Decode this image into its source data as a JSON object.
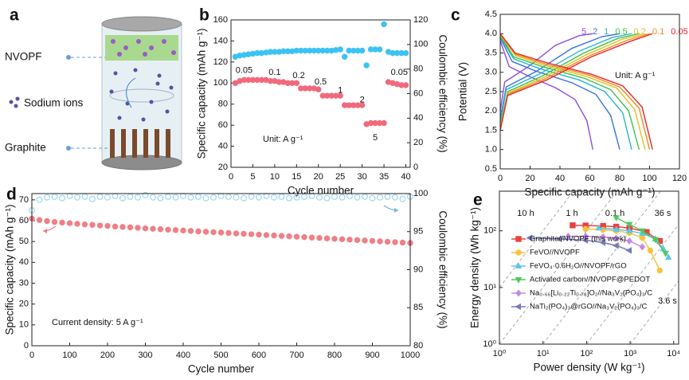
{
  "diagram": {
    "letter": "a",
    "labels": [
      "NVOPF",
      "Sodium ions",
      "Graphite"
    ]
  },
  "chart_data": [
    {
      "letter": "b",
      "type": "scatter",
      "xlabel": "Cycle number",
      "ylabel": "Specific capacity (mAh g⁻¹)",
      "y2label": "Coulombic efficiency (%)",
      "x": [
        1,
        2,
        3,
        4,
        5,
        6,
        7,
        8,
        9,
        10,
        11,
        12,
        13,
        14,
        15,
        16,
        17,
        18,
        19,
        20,
        21,
        22,
        23,
        24,
        25,
        26,
        27,
        28,
        29,
        30,
        31,
        32,
        33,
        34,
        35,
        36,
        37,
        38,
        39,
        40
      ],
      "xlim": [
        0,
        41
      ],
      "xticks": [
        0,
        5,
        10,
        15,
        20,
        25,
        30,
        35,
        40
      ],
      "ylim": [
        20,
        160
      ],
      "yticks": [
        20,
        40,
        60,
        80,
        100,
        120,
        140,
        160
      ],
      "y2lim": [
        0,
        120
      ],
      "y2ticks": [
        0,
        20,
        40,
        60,
        80,
        100,
        120
      ],
      "series": [
        {
          "color": "#f06a7c",
          "marker": "circle",
          "values": [
            100,
            102,
            103,
            103,
            103,
            103,
            103,
            103,
            102,
            102,
            101,
            101,
            100,
            100,
            100,
            95,
            95,
            95,
            95,
            94,
            88,
            88,
            88,
            88,
            88,
            79,
            79,
            79,
            79,
            79,
            61,
            62,
            62,
            62,
            62,
            101,
            100,
            99,
            98,
            98
          ]
        },
        {
          "color": "#3cc3f2",
          "marker": "circle",
          "axis": "y2",
          "values": [
            90,
            91,
            91.5,
            92,
            92.5,
            93,
            93,
            93.5,
            94,
            94,
            94,
            94.5,
            94.5,
            94.5,
            95,
            95,
            95,
            95,
            95,
            95,
            95,
            95,
            95,
            95.5,
            96,
            90,
            95,
            95,
            95,
            95,
            83,
            96,
            96,
            96,
            116.5,
            94,
            93,
            93,
            93,
            93
          ]
        }
      ],
      "rate_labels": [
        "0.05",
        "0.1",
        "0.2",
        "0.5",
        "1",
        "2",
        "5",
        "0.05"
      ],
      "unit_note": "Unit: A g⁻¹"
    },
    {
      "letter": "c",
      "type": "line",
      "xlabel": "Specific capacity (mAh g⁻¹)",
      "ylabel": "Potential (V)",
      "xlim": [
        0,
        120
      ],
      "xticks": [
        0,
        20,
        40,
        60,
        80,
        100,
        120
      ],
      "ylim": [
        0.5,
        4.5
      ],
      "yticks": [
        0.5,
        {
          "value": 1,
          "label": "1.0"
        },
        1.5,
        {
          "value": 2,
          "label": "2.0"
        },
        2.5,
        {
          "value": 3,
          "label": "3.0"
        },
        3.5,
        {
          "value": 4,
          "label": "4.0"
        },
        4.5
      ],
      "series": [
        {
          "name": "5",
          "color": "#8a4fd8",
          "discharge": {
            "x": [
              0,
              6,
              19,
              37,
              50,
              58,
              62
            ],
            "values": [
              3.82,
              3.15,
              2.9,
              2.6,
              2.3,
              1.75,
              1.0
            ]
          },
          "charge": {
            "x": [
              0,
              3,
              19,
              37,
              53,
              62
            ],
            "values": [
              2.0,
              2.75,
              3.15,
              3.7,
              3.95,
              4.0
            ]
          }
        },
        {
          "name": "2",
          "color": "#3b6fe0",
          "discharge": {
            "x": [
              0,
              8,
              24,
              48,
              64,
              74,
              80
            ],
            "values": [
              3.89,
              3.28,
              3.03,
              2.73,
              2.43,
              1.88,
              1.0
            ]
          },
          "charge": {
            "x": [
              0,
              4,
              24,
              48,
              68,
              80
            ],
            "values": [
              1.8,
              2.62,
              3.02,
              3.62,
              3.92,
              4.0
            ]
          }
        },
        {
          "name": "1",
          "color": "#29b6c9",
          "discharge": {
            "x": [
              0,
              9,
              26,
              53,
              70,
              82,
              88
            ],
            "values": [
              3.92,
              3.35,
              3.1,
              2.8,
              2.5,
              1.95,
              1.0
            ]
          },
          "charge": {
            "x": [
              0,
              4,
              26,
              53,
              75,
              88
            ],
            "values": [
              1.7,
              2.55,
              2.95,
              3.55,
              3.9,
              4.0
            ]
          }
        },
        {
          "name": "0.5",
          "color": "#3cc14a",
          "discharge": {
            "x": [
              0,
              9,
              28,
              56,
              74,
              86,
              93
            ],
            "values": [
              3.95,
              3.4,
              3.15,
              2.85,
              2.55,
              2.0,
              1.0
            ]
          },
          "charge": {
            "x": [
              0,
              5,
              28,
              56,
              79,
              93
            ],
            "values": [
              1.6,
              2.5,
              2.9,
              3.5,
              3.88,
              4.0
            ]
          }
        },
        {
          "name": "0.2",
          "color": "#e0c020",
          "discharge": {
            "x": [
              0,
              10,
              29,
              58,
              78,
              90,
              97
            ],
            "values": [
              3.97,
              3.44,
              3.19,
              2.89,
              2.59,
              2.04,
              1.0
            ]
          },
          "charge": {
            "x": [
              0,
              5,
              29,
              58,
              82,
              97
            ],
            "values": [
              1.55,
              2.46,
              2.86,
              3.46,
              3.86,
              4.0
            ]
          }
        },
        {
          "name": "0.1",
          "color": "#f08a1c",
          "discharge": {
            "x": [
              0,
              10,
              30,
              60,
              80,
              93,
              100
            ],
            "values": [
              3.98,
              3.47,
              3.22,
              2.92,
              2.62,
              2.07,
              1.0
            ]
          },
          "charge": {
            "x": [
              0,
              5,
              30,
              60,
              85,
              100
            ],
            "values": [
              1.5,
              2.43,
              2.83,
              3.43,
              3.83,
              4.0
            ]
          }
        },
        {
          "name": "0.05",
          "color": "#e8262a",
          "discharge": {
            "x": [
              0,
              10,
              31,
              61,
              82,
              95,
              102
            ],
            "values": [
              4.0,
              3.5,
              3.25,
              2.95,
              2.65,
              2.1,
              1.0
            ]
          },
          "charge": {
            "x": [
              0,
              5,
              31,
              61,
              87,
              102
            ],
            "values": [
              1.5,
              2.4,
              2.8,
              3.4,
              3.8,
              4.0
            ]
          }
        }
      ],
      "unit_note": "Unit: A g⁻¹"
    },
    {
      "letter": "d",
      "type": "scatter",
      "xlabel": "Cycle number",
      "ylabel": "Specific capacity (mAh g⁻¹)",
      "y2label": "Coulombic efficiency (%)",
      "x": [
        0,
        20,
        40,
        60,
        80,
        100,
        120,
        140,
        160,
        180,
        200,
        220,
        240,
        260,
        280,
        300,
        320,
        340,
        360,
        380,
        400,
        420,
        440,
        460,
        480,
        500,
        520,
        540,
        560,
        580,
        600,
        620,
        640,
        660,
        680,
        700,
        720,
        740,
        760,
        780,
        800,
        820,
        840,
        860,
        880,
        900,
        920,
        940,
        960,
        980,
        1000
      ],
      "xlim": [
        0,
        1000
      ],
      "xticks": [
        0,
        100,
        200,
        300,
        400,
        500,
        600,
        700,
        800,
        900,
        1000
      ],
      "ylim": [
        0,
        73
      ],
      "yticks": [
        0,
        10,
        20,
        30,
        40,
        50,
        60,
        70
      ],
      "y2lim": [
        80,
        100
      ],
      "y2ticks": [
        80,
        85,
        90,
        95,
        100
      ],
      "series": [
        {
          "color": "#f07f86",
          "marker": "circle",
          "values": [
            61.0,
            60.3,
            59.8,
            59.4,
            59.1,
            58.8,
            58.5,
            58.2,
            58.0,
            57.7,
            57.5,
            57.2,
            57.0,
            56.8,
            56.6,
            56.3,
            56.1,
            55.9,
            55.7,
            55.5,
            55.3,
            55.1,
            54.9,
            54.7,
            54.5,
            54.3,
            54.1,
            53.9,
            53.7,
            53.5,
            53.3,
            53.1,
            52.9,
            52.7,
            52.5,
            52.3,
            52.1,
            51.9,
            51.7,
            51.5,
            51.3,
            51.1,
            50.9,
            50.7,
            50.5,
            50.3,
            50.1,
            49.9,
            49.7,
            49.5,
            49.3
          ]
        },
        {
          "color": "#8ccff0",
          "marker": "circle",
          "open": true,
          "axis": "y2",
          "values": [
            97.8,
            99.2,
            99.5,
            99.6,
            99.4,
            99.7,
            99.5,
            99.6,
            99.3,
            99.6,
            99.5,
            99.7,
            99.4,
            99.6,
            99.5,
            99.8,
            99.5,
            99.4,
            99.6,
            99.5,
            99.7,
            99.5,
            99.6,
            99.4,
            99.5,
            99.7,
            99.6,
            99.5,
            99.4,
            99.6,
            99.5,
            99.7,
            99.5,
            99.6,
            99.4,
            99.5,
            99.6,
            99.7,
            99.5,
            99.4,
            99.6,
            99.5,
            99.7,
            99.5,
            99.6,
            99.4,
            99.5,
            99.6,
            99.5,
            99.3,
            99.6
          ]
        }
      ],
      "note": "Current density: 5 A g⁻¹"
    },
    {
      "letter": "e",
      "type": "scatter",
      "lines": true,
      "xlabel": "Power density (W kg⁻¹)",
      "ylabel": "Energy density (Wh kg⁻¹)",
      "xlog": true,
      "ylog": true,
      "xlim": [
        1,
        13000
      ],
      "xticks": [
        {
          "value": 1,
          "label": "10⁰"
        },
        {
          "value": 10,
          "label": "10¹"
        },
        {
          "value": 100,
          "label": "10²"
        },
        {
          "value": 1000,
          "label": "10³"
        },
        {
          "value": 10000,
          "label": "10⁴"
        }
      ],
      "ylim": [
        1,
        500
      ],
      "yticks": [
        {
          "value": 1,
          "label": "10⁰"
        },
        {
          "value": 10,
          "label": "10¹"
        },
        {
          "value": 100,
          "label": "10²"
        }
      ],
      "series": [
        {
          "name": "Graphite//NVOPF (this work)",
          "color": "#e8423f",
          "marker": "square",
          "x": [
            48,
            95,
            240,
            480,
            960,
            2400,
            4800
          ],
          "values": [
            125,
            124,
            122,
            118,
            112,
            95,
            66
          ]
        },
        {
          "name": "FeVO//NVOPF",
          "color": "#f5c43a",
          "marker": "circle",
          "x": [
            95,
            240,
            480,
            960,
            1900,
            2900,
            4800
          ],
          "values": [
            108,
            104,
            100,
            92,
            75,
            45,
            20
          ]
        },
        {
          "name": "FeVO₄·0.6H₂O//NVOPF/rGO",
          "color": "#5cc8e8",
          "marker": "triangle",
          "x": [
            190,
            480,
            960,
            1900,
            3800,
            5800,
            7600
          ],
          "values": [
            112,
            106,
            100,
            90,
            72,
            48,
            34
          ]
        },
        {
          "name": "Activated carbon//NVOPF@PEDOT",
          "color": "#4fc95a",
          "marker": "triangle-down",
          "x": [
            480,
            960,
            1900,
            3800,
            6500
          ],
          "values": [
            170,
            130,
            100,
            70,
            40
          ]
        },
        {
          "name": "Na₀.₆₆[Li₀.₂₂Ti₀.₇₈]O₂//Na₃V₂(PO₄)₃/C",
          "color": "#c58ae8",
          "marker": "diamond",
          "x": [
            38,
            95,
            240,
            480,
            960,
            1900
          ],
          "values": [
            80,
            80,
            78,
            74,
            66,
            52
          ]
        },
        {
          "name": "NaTi₂(PO₄)₃@rGO//Na₃V₂(PO₄)₃/C",
          "color": "#7a7ab8",
          "marker": "triangle-left",
          "x": [
            5,
            24,
            95,
            240,
            480,
            960
          ],
          "values": [
            75,
            72,
            68,
            62,
            55,
            45
          ]
        }
      ],
      "time_lines": [
        {
          "label": "10 h",
          "hours": 10
        },
        {
          "label": "1 h",
          "hours": 1
        },
        {
          "label": "0.1 h",
          "hours": 0.1
        },
        {
          "label": "36 s",
          "hours": 0.01
        },
        {
          "label": "3.6 s",
          "hours": 0.001
        }
      ]
    }
  ]
}
